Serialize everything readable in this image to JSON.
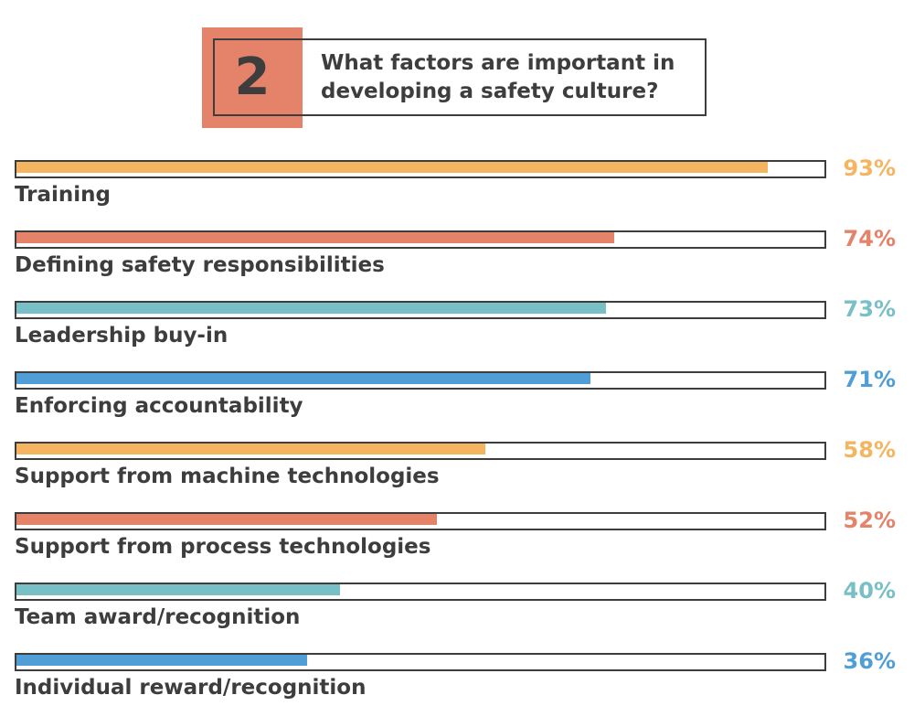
{
  "header": {
    "number": "2",
    "question": "What factors are important in developing a safety culture?",
    "number_box_color": "#e4826a"
  },
  "chart_data": {
    "type": "bar",
    "orientation": "horizontal",
    "categories": [
      "Training",
      "Defining safety responsibilities",
      "Leadership buy-in",
      "Enforcing accountability",
      "Support from machine technologies",
      "Support from process technologies",
      "Team award/recognition",
      "Individual reward/recognition"
    ],
    "values": [
      93,
      74,
      73,
      71,
      58,
      52,
      40,
      36
    ],
    "value_labels": [
      "93%",
      "74%",
      "73%",
      "71%",
      "58%",
      "52%",
      "40%",
      "36%"
    ],
    "colors": [
      "#f5b560",
      "#e4826a",
      "#79bfc6",
      "#4f9fd6",
      "#f5b560",
      "#e4826a",
      "#79bfc6",
      "#4f9fd6"
    ],
    "xlim": [
      0,
      100
    ],
    "grid": false,
    "legend": "none"
  }
}
